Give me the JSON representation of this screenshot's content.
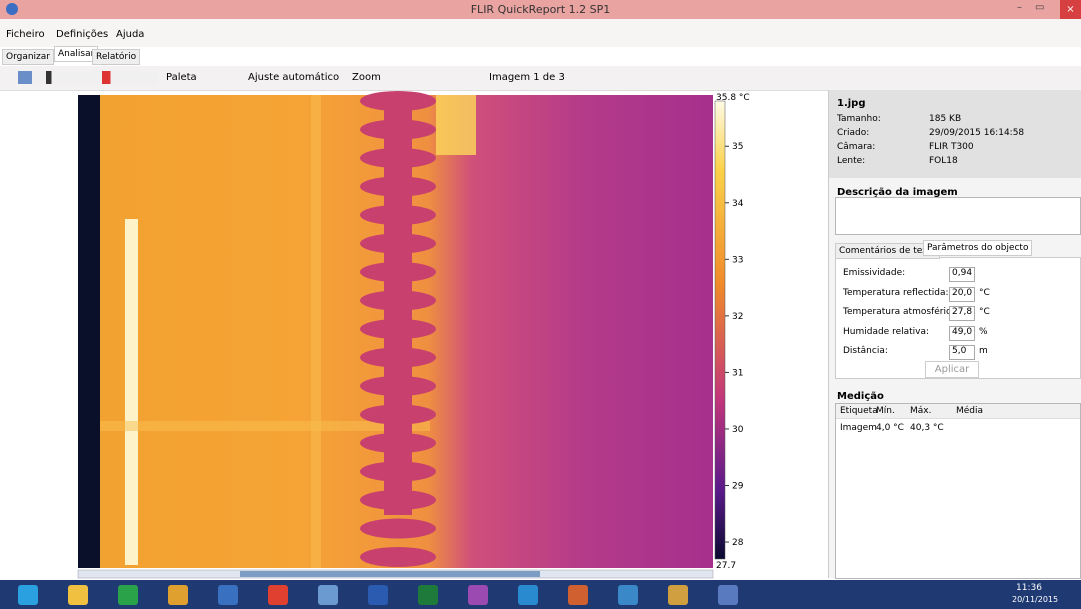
{
  "window": {
    "title": "FLIR QuickReport 1.2 SP1"
  },
  "menu": [
    "Ficheiro",
    "Definições",
    "Ajuda"
  ],
  "tabs": [
    "Organizar",
    "Analisar",
    "Relatório"
  ],
  "toolbar": {
    "palette": "Paleta",
    "auto_adjust": "Ajuste automático",
    "zoom": "Zoom",
    "image_nav": "Imagem 1 de 3"
  },
  "colorbar": {
    "max": {
      "value": 35.8,
      "label": "35.8 °C"
    },
    "min": {
      "value": 27.7,
      "label": "27.7"
    },
    "ticks": [
      35,
      34,
      33,
      32,
      31,
      30,
      29,
      28
    ]
  },
  "info": {
    "filename": "1.jpg",
    "fields": [
      {
        "label": "Tamanho:",
        "value": "185 KB"
      },
      {
        "label": "Criado:",
        "value": "29/09/2015 16:14:58"
      },
      {
        "label": "Câmara:",
        "value": "FLIR T300"
      },
      {
        "label": "Lente:",
        "value": "FOL18"
      }
    ]
  },
  "description": {
    "title": "Descrição da imagem"
  },
  "panel_tabs": [
    "Comentários de texto",
    "Parâmetros do objecto"
  ],
  "parameters": [
    {
      "label": "Emissividade:",
      "value": "0,94",
      "unit": ""
    },
    {
      "label": "Temperatura reflectida:",
      "value": "20,0",
      "unit": "°C"
    },
    {
      "label": "Temperatura atmosférica:",
      "value": "27,8",
      "unit": "°C"
    },
    {
      "label": "Humidade relativa:",
      "value": "49,0",
      "unit": "%"
    },
    {
      "label": "Distância:",
      "value": "5,0",
      "unit": "m"
    }
  ],
  "apply_button": "Aplicar",
  "measurement": {
    "title": "Medição",
    "headers": [
      "Etiqueta",
      "Mín.",
      "Máx.",
      "Média"
    ],
    "rows": [
      [
        "Imagem",
        "4,0 °C",
        "40,3 °C",
        ""
      ]
    ]
  },
  "taskbar": {
    "time": "11:36",
    "date": "20/11/2015"
  }
}
